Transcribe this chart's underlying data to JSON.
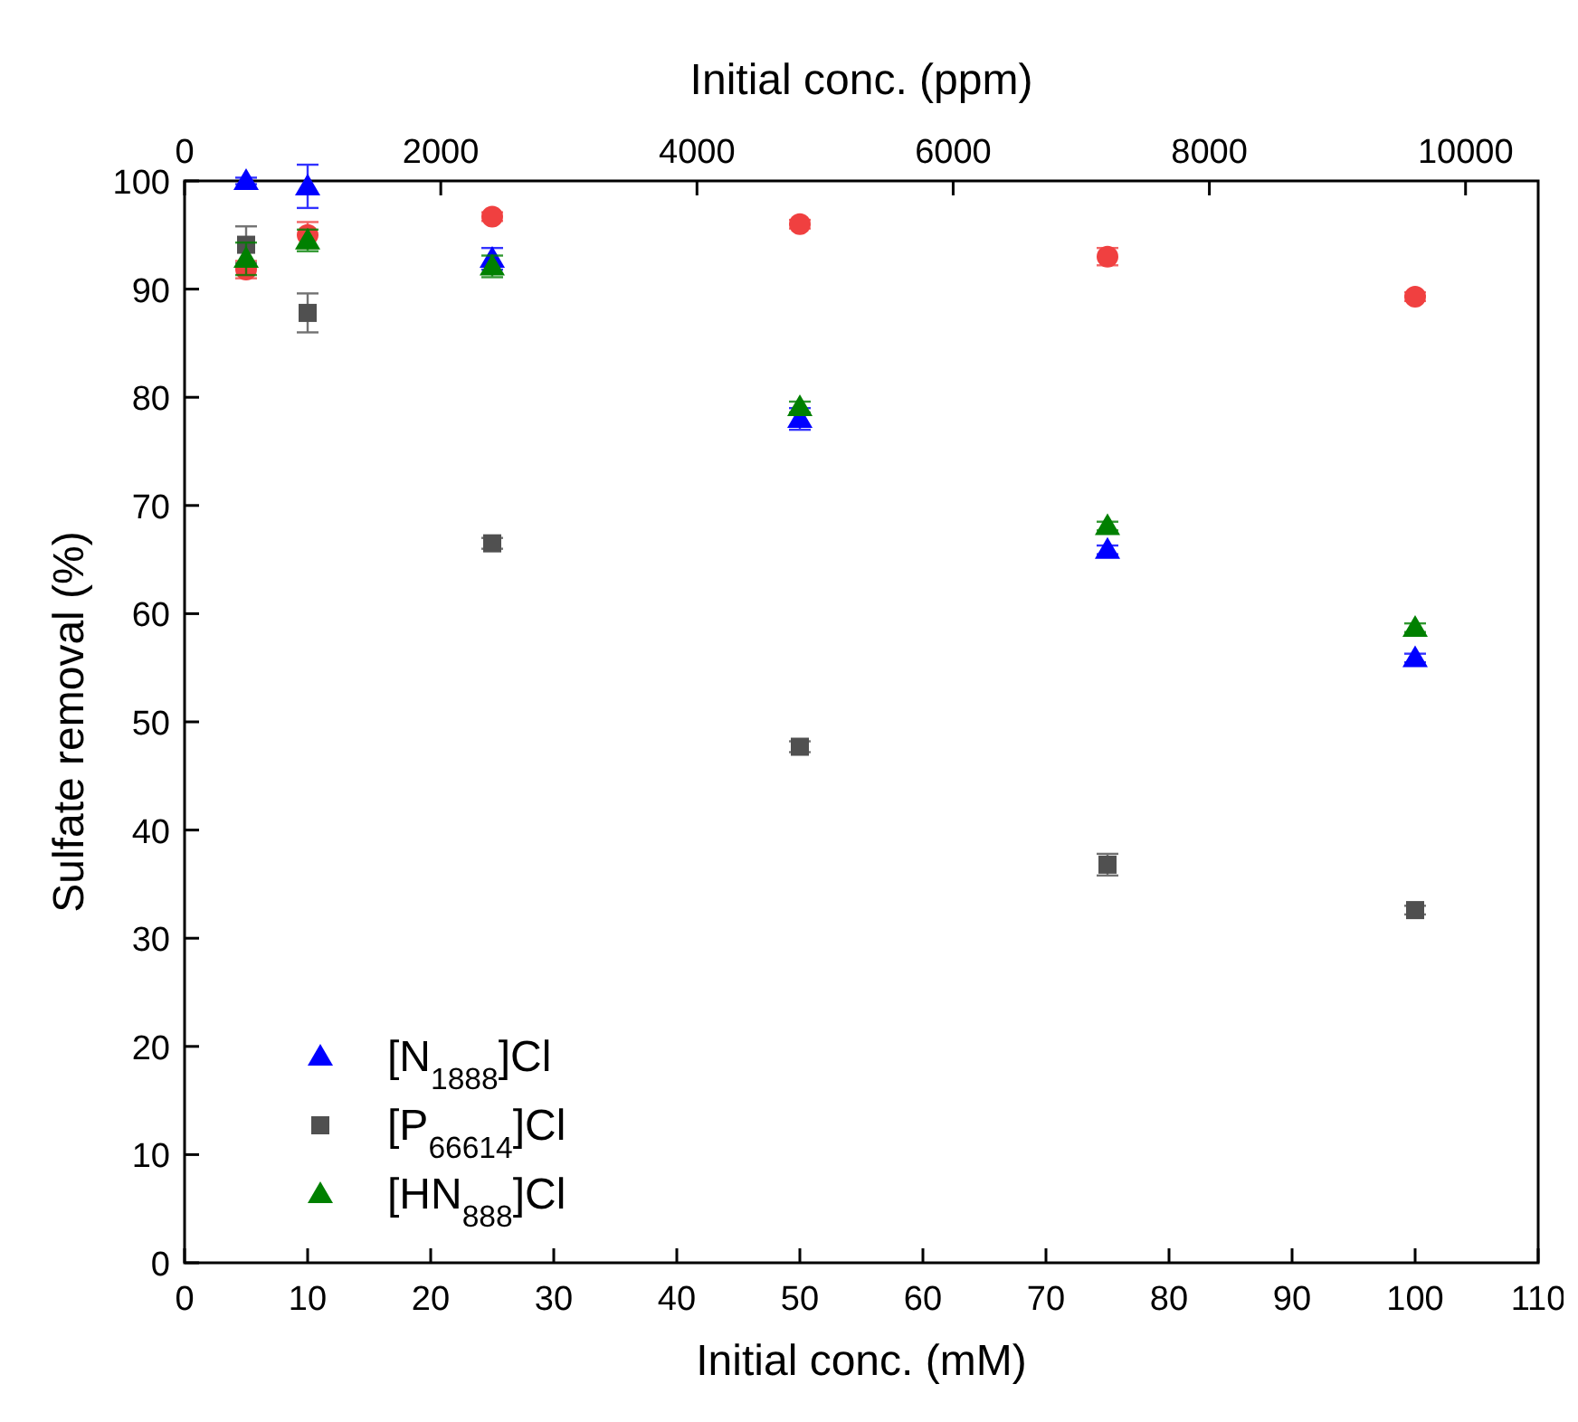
{
  "chart_data": {
    "type": "scatter",
    "xlabel": "Initial conc. (mM)",
    "ylabel": "Sulfate removal (%)",
    "x2label": "Initial conc. (ppm)",
    "xlim": [
      0,
      110
    ],
    "xticks": [
      0,
      10,
      20,
      30,
      40,
      50,
      60,
      70,
      80,
      90,
      100,
      110
    ],
    "x2lim": [
      0,
      10567
    ],
    "x2ticks": [
      0,
      2000,
      4000,
      6000,
      8000,
      10000
    ],
    "ylim": [
      0,
      100
    ],
    "yticks": [
      0,
      10,
      20,
      30,
      40,
      50,
      60,
      70,
      80,
      90,
      100
    ],
    "grid": false,
    "legend": "bottom left",
    "x": [
      5,
      10,
      25,
      50,
      75,
      100
    ],
    "series": [
      {
        "color": "#f04040",
        "marker": "circle",
        "values": [
          91.8,
          95.0,
          96.7,
          96.0,
          93.0,
          89.3
        ],
        "errors": [
          0.8,
          1.2,
          0.4,
          0.4,
          0.8,
          0.4
        ]
      },
      {
        "name": "[N$_{1888}$]Cl",
        "color": "#0000ff",
        "marker": "triangle",
        "values": [
          100,
          99.5,
          92.8,
          78.0,
          65.9,
          55.9
        ],
        "errors": [
          0.3,
          2.0,
          1.0,
          1.0,
          0.4,
          0.4
        ]
      },
      {
        "name": "[P$_{66614}$]Cl",
        "color": "#505050",
        "marker": "square",
        "values": [
          94.1,
          87.8,
          66.5,
          47.7,
          36.8,
          32.6
        ],
        "errors": [
          1.7,
          1.8,
          0.5,
          0.5,
          1.0,
          0.4
        ]
      },
      {
        "name": "[HN$_{888}$]Cl",
        "color": "#008000",
        "marker": "triangle",
        "values": [
          92.8,
          94.5,
          92.1,
          79.1,
          68.1,
          58.7
        ],
        "errors": [
          1.5,
          1.0,
          1.0,
          0.5,
          0.4,
          0.4
        ]
      }
    ]
  }
}
